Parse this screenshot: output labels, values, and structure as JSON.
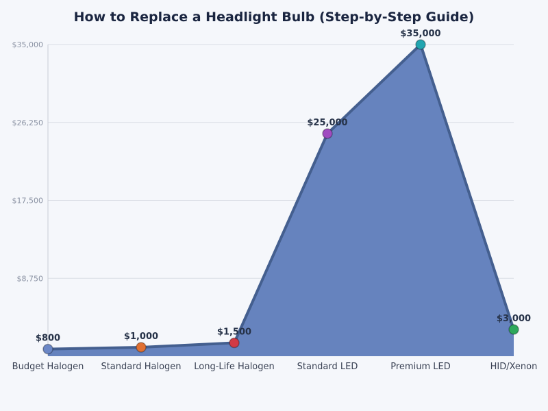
{
  "title": "How to Replace a Headlight Bulb (Step-by-Step Guide)",
  "colors": {
    "background": "#f5f7fb",
    "area_fill": "#6683be",
    "line": "#445f8f",
    "grid": "#d9dde4",
    "markers": [
      "#6b87c6",
      "#e07032",
      "#d23a44",
      "#a04cc0",
      "#22a5b0",
      "#2ea85c"
    ]
  },
  "chart_data": {
    "type": "area",
    "title": "How to Replace a Headlight Bulb (Step-by-Step Guide)",
    "xlabel": "",
    "ylabel": "",
    "categories": [
      "Budget Halogen",
      "Standard Halogen",
      "Long-Life Halogen",
      "Standard LED",
      "Premium LED",
      "HID/Xenon"
    ],
    "values": [
      800,
      1000,
      1500,
      25000,
      35000,
      3000
    ],
    "data_labels": [
      "$800",
      "$1,000",
      "$1,500",
      "$25,000",
      "$35,000",
      "$3,000"
    ],
    "yticks": [
      8750,
      17500,
      26250,
      35000
    ],
    "ytick_labels": [
      "$8,750",
      "$17,500",
      "$26,250",
      "$35,000"
    ],
    "ylim": [
      0,
      35000
    ],
    "grid": true,
    "legend": null
  }
}
